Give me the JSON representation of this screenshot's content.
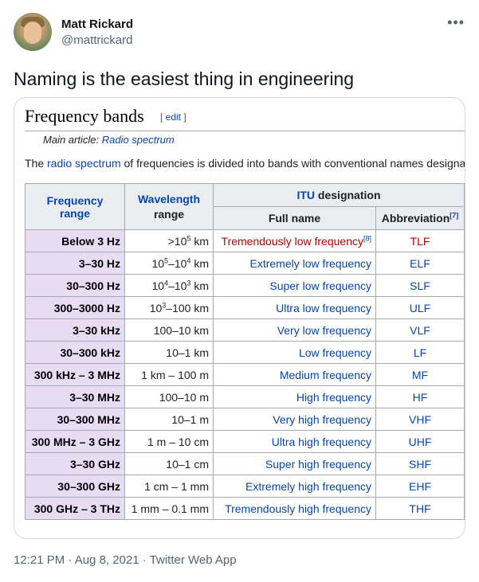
{
  "tweet": {
    "display_name": "Matt Rickard",
    "handle": "@mattrickard",
    "more_icon": "more-dots-icon",
    "text": "Naming is the easiest thing in engineering",
    "timestamp": "12:21 PM · Aug 8, 2021 · Twitter Web App"
  },
  "wiki": {
    "title": "Frequency bands",
    "edit_open": "[ ",
    "edit_label": "edit",
    "edit_close": " ]",
    "main_article_prefix": "Main article: ",
    "main_article_link": "Radio spectrum",
    "intro_prefix": "The ",
    "intro_link": "radio spectrum",
    "intro_rest": " of frequencies is divided into bands with conventional names designa",
    "table": {
      "header": {
        "freq_line1": "Frequency",
        "freq_line2": "range",
        "wave_line1": "Wavelength",
        "wave_line2": "range",
        "itu_prefix": "ITU",
        "itu_suffix": " designation",
        "full_name": "Full name",
        "abbreviation": "Abbreviation",
        "abbreviation_ref": "[7]"
      },
      "rows": [
        {
          "freq": "Below 3 Hz",
          "wave_a": ">10",
          "wave_a_sup": "5",
          "wave_b": " km",
          "full": "Tremendously low frequency",
          "full_ref": "[8]",
          "abbr": "TLF",
          "missing": true
        },
        {
          "freq": "3–30 Hz",
          "wave_a": "10",
          "wave_a_sup": "5",
          "wave_b": "–10",
          "wave_b_sup": "4",
          "wave_c": " km",
          "full": "Extremely low frequency",
          "abbr": "ELF"
        },
        {
          "freq": "30–300 Hz",
          "wave_a": "10",
          "wave_a_sup": "4",
          "wave_b": "–10",
          "wave_b_sup": "3",
          "wave_c": " km",
          "full": "Super low frequency",
          "abbr": "SLF"
        },
        {
          "freq": "300–3000 Hz",
          "wave_a": "10",
          "wave_a_sup": "3",
          "wave_b": "–100 km",
          "full": "Ultra low frequency",
          "abbr": "ULF"
        },
        {
          "freq": "3–30 kHz",
          "wave": "100–10 km",
          "full": "Very low frequency",
          "abbr": "VLF"
        },
        {
          "freq": "30–300 kHz",
          "wave": "10–1 km",
          "full": "Low frequency",
          "abbr": "LF"
        },
        {
          "freq": "300 kHz – 3 MHz",
          "wave": "1 km – 100 m",
          "full": "Medium frequency",
          "abbr": "MF"
        },
        {
          "freq": "3–30 MHz",
          "wave": "100–10 m",
          "full": "High frequency",
          "abbr": "HF"
        },
        {
          "freq": "30–300 MHz",
          "wave": "10–1 m",
          "full": "Very high frequency",
          "abbr": "VHF"
        },
        {
          "freq": "300 MHz – 3 GHz",
          "wave": "1 m – 10 cm",
          "full": "Ultra high frequency",
          "abbr": "UHF"
        },
        {
          "freq": "3–30 GHz",
          "wave": "10–1 cm",
          "full": "Super high frequency",
          "abbr": "SHF"
        },
        {
          "freq": "30–300 GHz",
          "wave": "1 cm – 1 mm",
          "full": "Extremely high frequency",
          "abbr": "EHF"
        },
        {
          "freq": "300 GHz – 3 THz",
          "wave": "1 mm – 0.1 mm",
          "full": "Tremendously high frequency",
          "abbr": "THF"
        }
      ]
    }
  }
}
